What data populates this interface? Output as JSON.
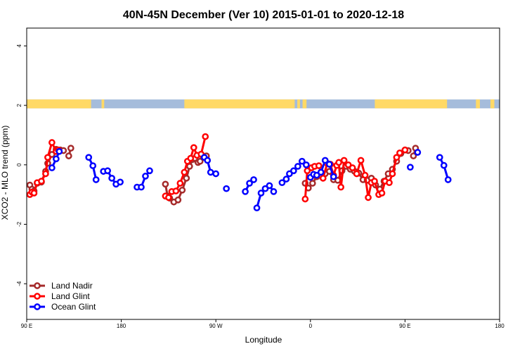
{
  "chart_data": {
    "type": "line",
    "title": "40N-45N December (Ver 10)   2015-01-01 to 2020-12-18",
    "xlabel": "Longitude",
    "ylabel": "XCO2 - MLO trend (ppm)",
    "xlim": [
      90,
      450
    ],
    "ylim": [
      -5.2,
      4.6
    ],
    "x_ticks": [
      {
        "value": 90,
        "label": "90 E"
      },
      {
        "value": 180,
        "label": "180"
      },
      {
        "value": 270,
        "label": "90 W"
      },
      {
        "value": 360,
        "label": "0"
      },
      {
        "value": 450,
        "label": "90 E"
      },
      {
        "value": 540,
        "label": "180"
      }
    ],
    "y_ticks": [
      {
        "value": -4,
        "label": "-4"
      },
      {
        "value": -2,
        "label": "-2"
      },
      {
        "value": 0,
        "label": "0"
      },
      {
        "value": 2,
        "label": "2"
      },
      {
        "value": 4,
        "label": "4"
      }
    ],
    "grid": false,
    "legend_position": "bottom-left",
    "surface_strip": {
      "y_range": [
        1.9,
        2.2
      ],
      "land_color": "#FFD966",
      "ocean_color": "#A5BCDB",
      "land_segments": [
        [
          90,
          139
        ],
        [
          147,
          149
        ],
        [
          210,
          294
        ],
        [
          296,
          298
        ],
        [
          300,
          303
        ],
        [
          355,
          410
        ],
        [
          432,
          435
        ],
        [
          443,
          446
        ]
      ]
    },
    "series": [
      {
        "name": "Land Nadir",
        "color": "#A52A2A",
        "segments": [
          [
            [
              93,
              -0.68
            ],
            [
              95,
              -0.82
            ],
            [
              97,
              -0.88
            ],
            [
              100,
              -0.62
            ],
            [
              104,
              -0.58
            ],
            [
              108,
              -0.22
            ],
            [
              110,
              0.05
            ],
            [
              114,
              0.35
            ],
            [
              118,
              0.52
            ],
            [
              122,
              0.5
            ],
            [
              125,
              0.48
            ]
          ],
          [
            [
              130,
              0.3
            ],
            [
              132,
              0.56
            ]
          ],
          [
            [
              222,
              -0.65
            ],
            [
              224,
              -1.05
            ],
            [
              226,
              -1.12
            ],
            [
              230,
              -1.25
            ],
            [
              234,
              -1.18
            ],
            [
              238,
              -0.85
            ],
            [
              242,
              -0.45
            ],
            [
              245,
              -0.05
            ],
            [
              248,
              0.18
            ],
            [
              250,
              0.22
            ],
            [
              253,
              0.08
            ],
            [
              255,
              0.12
            ],
            [
              258,
              0.25
            ],
            [
              261,
              0.3
            ]
          ],
          [
            [
              355,
              -0.62
            ],
            [
              358,
              -0.78
            ],
            [
              362,
              -0.62
            ],
            [
              366,
              -0.4
            ],
            [
              370,
              -0.25
            ],
            [
              374,
              -0.3
            ],
            [
              378,
              -0.22
            ],
            [
              382,
              -0.5
            ],
            [
              386,
              -0.52
            ],
            [
              390,
              -0.2
            ],
            [
              394,
              -0.05
            ],
            [
              398,
              -0.15
            ],
            [
              402,
              -0.22
            ],
            [
              406,
              -0.28
            ],
            [
              410,
              -0.5
            ],
            [
              414,
              -0.52
            ],
            [
              418,
              -0.45
            ],
            [
              422,
              -0.68
            ],
            [
              426,
              -0.82
            ],
            [
              430,
              -0.55
            ],
            [
              434,
              -0.3
            ],
            [
              438,
              -0.15
            ],
            [
              442,
              0.12
            ],
            [
              446,
              0.38
            ],
            [
              450,
              0.5
            ],
            [
              453,
              0.48
            ]
          ],
          [
            [
              458,
              0.3
            ],
            [
              460,
              0.56
            ]
          ]
        ]
      },
      {
        "name": "Land Glint",
        "color": "#FF0000",
        "segments": [
          [
            [
              93,
              -1.0
            ],
            [
              95,
              -0.92
            ],
            [
              97,
              -0.95
            ],
            [
              100,
              -0.6
            ],
            [
              104,
              -0.55
            ],
            [
              108,
              -0.3
            ],
            [
              110,
              0.25
            ],
            [
              114,
              0.75
            ],
            [
              118,
              0.45
            ],
            [
              120,
              0.5
            ]
          ],
          [
            [
              222,
              -1.05
            ],
            [
              225,
              -1.1
            ],
            [
              228,
              -0.9
            ],
            [
              232,
              -0.88
            ],
            [
              236,
              -0.62
            ],
            [
              240,
              -0.25
            ],
            [
              243,
              0.12
            ],
            [
              246,
              0.22
            ],
            [
              249,
              0.58
            ],
            [
              252,
              0.32
            ],
            [
              256,
              0.36
            ],
            [
              260,
              0.95
            ]
          ],
          [
            [
              355,
              -1.15
            ],
            [
              357,
              -0.2
            ],
            [
              361,
              -0.1
            ],
            [
              364,
              -0.05
            ],
            [
              368,
              -0.03
            ],
            [
              372,
              -0.45
            ],
            [
              376,
              0.05
            ],
            [
              379,
              0.02
            ],
            [
              382,
              -0.35
            ],
            [
              385,
              -0.02
            ],
            [
              387,
              0.08
            ],
            [
              389,
              -0.75
            ],
            [
              392,
              0.15
            ],
            [
              396,
              0.0
            ],
            [
              400,
              -0.1
            ],
            [
              404,
              -0.3
            ],
            [
              408,
              0.15
            ],
            [
              412,
              -0.35
            ],
            [
              415,
              -1.1
            ],
            [
              418,
              -0.6
            ],
            [
              421,
              -0.55
            ],
            [
              425,
              -1.0
            ],
            [
              428,
              -0.95
            ],
            [
              431,
              -0.55
            ],
            [
              435,
              -0.6
            ],
            [
              438,
              -0.3
            ],
            [
              442,
              0.25
            ],
            [
              445,
              0.4
            ],
            [
              450,
              0.5
            ]
          ]
        ]
      },
      {
        "name": "Ocean Glint",
        "color": "#0000FF",
        "segments": [
          [
            [
              114,
              -0.1
            ],
            [
              118,
              0.2
            ],
            [
              121,
              0.45
            ]
          ],
          [
            [
              149,
              0.25
            ],
            [
              153,
              -0.03
            ],
            [
              156,
              -0.5
            ]
          ],
          [
            [
              163,
              -0.22
            ],
            [
              167,
              -0.2
            ],
            [
              171,
              -0.45
            ],
            [
              175,
              -0.65
            ],
            [
              179,
              -0.58
            ]
          ],
          [
            [
              195,
              -0.75
            ],
            [
              199,
              -0.75
            ],
            [
              203,
              -0.38
            ],
            [
              207,
              -0.2
            ]
          ],
          [
            [
              259,
              0.25
            ],
            [
              262,
              0.15
            ],
            [
              265,
              -0.25
            ],
            [
              270,
              -0.3
            ]
          ],
          [
            [
              280,
              -0.8
            ]
          ],
          [
            [
              298,
              -0.9
            ],
            [
              302,
              -0.62
            ],
            [
              306,
              -0.5
            ]
          ],
          [
            [
              309,
              -1.45
            ],
            [
              313,
              -0.95
            ],
            [
              317,
              -0.8
            ],
            [
              321,
              -0.7
            ],
            [
              325,
              -0.9
            ]
          ],
          [
            [
              333,
              -0.6
            ],
            [
              337,
              -0.48
            ],
            [
              340,
              -0.3
            ],
            [
              344,
              -0.2
            ],
            [
              348,
              -0.05
            ],
            [
              352,
              0.12
            ],
            [
              356,
              0.0
            ]
          ],
          [
            [
              360,
              -0.42
            ],
            [
              363,
              -0.32
            ],
            [
              366,
              -0.35
            ],
            [
              370,
              -0.25
            ],
            [
              374,
              0.15
            ],
            [
              378,
              0.02
            ],
            [
              382,
              -0.4
            ]
          ],
          [
            [
              455,
              -0.08
            ]
          ],
          [
            [
              462,
              0.42
            ]
          ],
          [
            [
              483,
              0.25
            ],
            [
              487,
              -0.02
            ],
            [
              491,
              -0.5
            ]
          ]
        ]
      }
    ]
  }
}
